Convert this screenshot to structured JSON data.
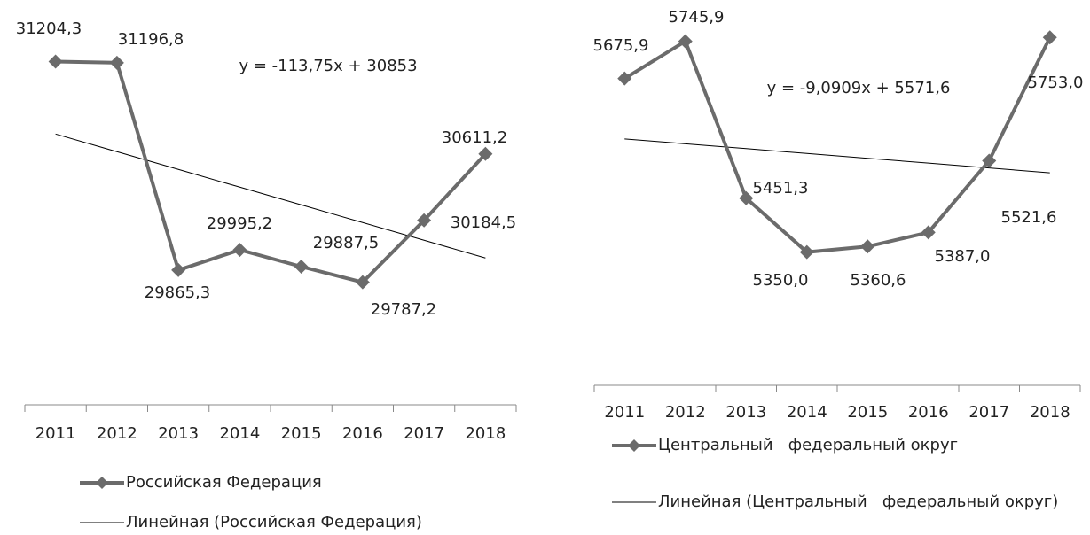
{
  "chart_data": [
    {
      "type": "line",
      "categories": [
        "2011",
        "2012",
        "2013",
        "2014",
        "2015",
        "2016",
        "2017",
        "2018"
      ],
      "series": [
        {
          "name": "Российская Федерация",
          "color": "#6b6b6b",
          "values": [
            31204.3,
            31196.8,
            29865.3,
            29995.2,
            29887.5,
            29787.2,
            30184.5,
            30611.2
          ],
          "value_labels": [
            "31204,3",
            "31196,8",
            "29865,3",
            "29995,2",
            "29887,5",
            "29787,2",
            "30184,5",
            "30611,2"
          ]
        },
        {
          "name": "Линейная (Российская Федерация)",
          "color": "#000000",
          "values": [
            30739.25,
            30625.5,
            30511.75,
            30398,
            30284.25,
            30170.5,
            30056.75,
            29943
          ]
        }
      ],
      "annotation": "y = -113,75x + 30853",
      "ylim": [
        29000,
        31600
      ]
    },
    {
      "type": "line",
      "categories": [
        "2011",
        "2012",
        "2013",
        "2014",
        "2015",
        "2016",
        "2017",
        "2018"
      ],
      "series": [
        {
          "name": "Центральный   федеральный округ",
          "color": "#6b6b6b",
          "values": [
            5675.9,
            5745.9,
            5451.3,
            5350.0,
            5360.6,
            5387.0,
            5521.6,
            5753.0
          ],
          "value_labels": [
            "5675,9",
            "5745,9",
            "5451,3",
            "5350,0",
            "5360,6",
            "5387,0",
            "5521,6",
            "5753,0"
          ]
        },
        {
          "name": "Линейная (Центральный   федеральный округ)",
          "color": "#000000",
          "values": [
            5562.5,
            5553.4,
            5544.3,
            5535.2,
            5526.1,
            5517.1,
            5508.0,
            5498.9
          ]
        }
      ],
      "annotation": "y = -9,0909x + 5571,6",
      "ylim": [
        5100,
        5820
      ]
    }
  ]
}
